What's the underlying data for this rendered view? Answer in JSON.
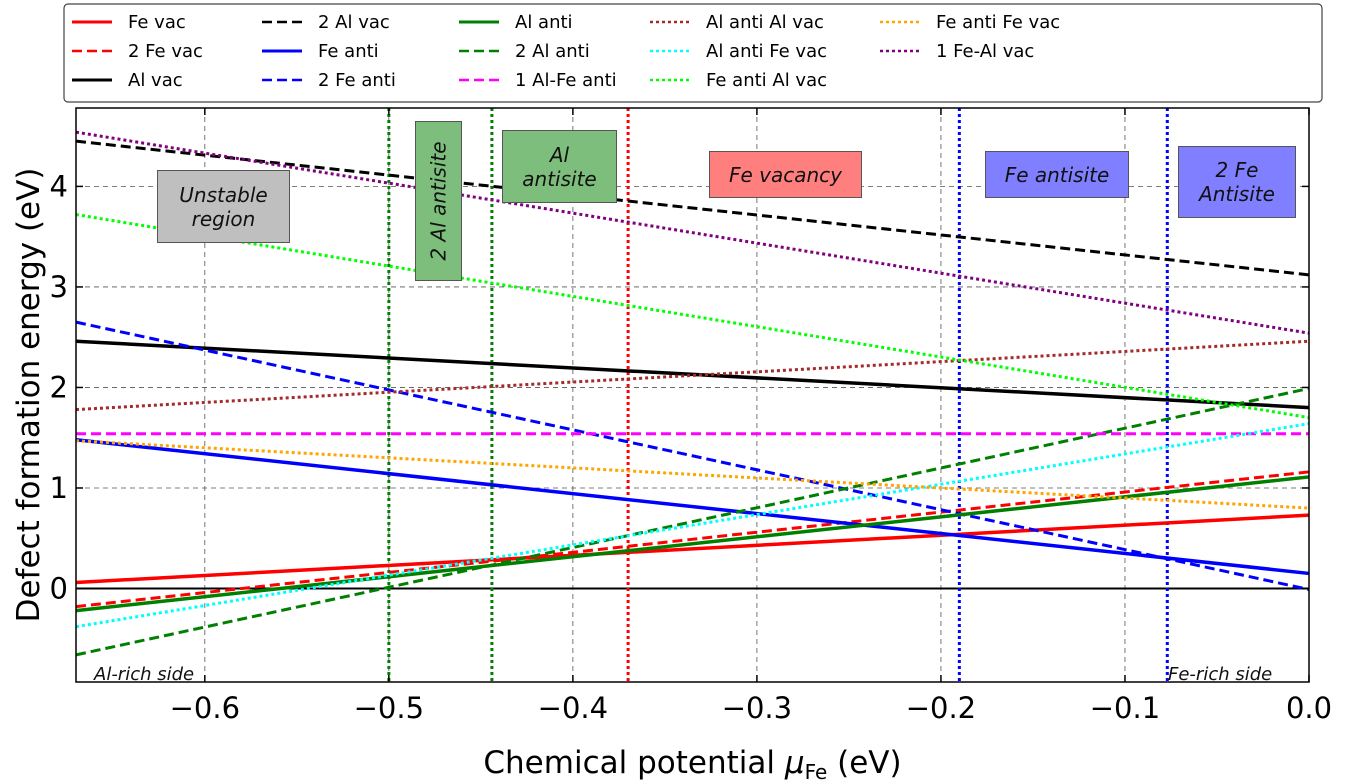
{
  "chart_data": {
    "type": "line",
    "xlabel": "Chemical potential ",
    "xlabel_mu": "μ",
    "xlabel_sub": "Fe",
    "xlabel_unit": " (eV)",
    "ylabel": "Defect formation energy (eV)",
    "xlim": [
      -0.67,
      0.0
    ],
    "ylim": [
      -0.93,
      4.78
    ],
    "xticks": [
      -0.6,
      -0.5,
      -0.4,
      -0.3,
      -0.2,
      -0.1,
      0.0
    ],
    "xtick_labels": [
      "−0.6",
      "−0.5",
      "−0.4",
      "−0.3",
      "−0.2",
      "−0.1",
      "0.0"
    ],
    "yticks": [
      0,
      1,
      2,
      3,
      4
    ],
    "ytick_labels": [
      "0",
      "1",
      "2",
      "3",
      "4"
    ],
    "grid": true,
    "legend_position": "top",
    "series": [
      {
        "name": "Fe vac",
        "color": "#ff0000",
        "dash": "solid",
        "x": [
          -0.67,
          0.0
        ],
        "y": [
          0.06,
          0.73
        ]
      },
      {
        "name": "2 Fe vac",
        "color": "#ff0000",
        "dash": "dashed",
        "x": [
          -0.67,
          0.0
        ],
        "y": [
          -0.18,
          1.16
        ]
      },
      {
        "name": "Al vac",
        "color": "#000000",
        "dash": "solid",
        "x": [
          -0.67,
          0.0
        ],
        "y": [
          2.46,
          1.8
        ]
      },
      {
        "name": "2 Al vac",
        "color": "#000000",
        "dash": "dashed",
        "x": [
          -0.67,
          0.0
        ],
        "y": [
          4.45,
          3.12
        ]
      },
      {
        "name": "Fe anti",
        "color": "#0000ff",
        "dash": "solid",
        "x": [
          -0.67,
          0.0
        ],
        "y": [
          1.48,
          0.15
        ]
      },
      {
        "name": "2 Fe anti",
        "color": "#0000ff",
        "dash": "dashed",
        "x": [
          -0.67,
          0.0
        ],
        "y": [
          2.65,
          -0.01
        ]
      },
      {
        "name": "Al anti",
        "color": "#008000",
        "dash": "solid",
        "x": [
          -0.67,
          0.0
        ],
        "y": [
          -0.22,
          1.11
        ]
      },
      {
        "name": "2 Al anti",
        "color": "#008000",
        "dash": "dashed",
        "x": [
          -0.67,
          0.0
        ],
        "y": [
          -0.66,
          1.99
        ]
      },
      {
        "name": "1 Al-Fe anti",
        "color": "#ff00ff",
        "dash": "dashed",
        "x": [
          -0.67,
          0.0
        ],
        "y": [
          1.54,
          1.54
        ]
      },
      {
        "name": "Al anti Al vac",
        "color": "#a52a2a",
        "dash": "dotted",
        "x": [
          -0.67,
          0.0
        ],
        "y": [
          1.78,
          2.46
        ]
      },
      {
        "name": "Al anti Fe vac",
        "color": "#00ffff",
        "dash": "dotted",
        "x": [
          -0.67,
          0.0
        ],
        "y": [
          -0.38,
          1.64
        ]
      },
      {
        "name": "Fe anti Al vac",
        "color": "#00ff00",
        "dash": "dotted",
        "x": [
          -0.67,
          0.0
        ],
        "y": [
          3.72,
          1.7
        ]
      },
      {
        "name": "Fe anti Fe vac",
        "color": "#ffa500",
        "dash": "dotted",
        "x": [
          -0.67,
          0.0
        ],
        "y": [
          1.47,
          0.8
        ]
      },
      {
        "name": "1 Fe-Al vac",
        "color": "#800080",
        "dash": "dotted",
        "x": [
          -0.67,
          0.0
        ],
        "y": [
          4.54,
          2.54
        ]
      }
    ],
    "vlines": [
      {
        "x": -0.5,
        "color": "#008000"
      },
      {
        "x": -0.444,
        "color": "#008000"
      },
      {
        "x": -0.37,
        "color": "#ff0000"
      },
      {
        "x": -0.19,
        "color": "#0000ff"
      },
      {
        "x": -0.077,
        "color": "#0000ff"
      }
    ],
    "annotations": [
      {
        "text": "Unstable\nregion",
        "color": "#bfbfbf"
      },
      {
        "text": "2 Al antisite",
        "color": "#7dbe7d"
      },
      {
        "text": "Al\nantisite",
        "color": "#7dbe7d"
      },
      {
        "text": "Fe vacancy",
        "color": "#ff7f7f"
      },
      {
        "text": "Fe antisite",
        "color": "#7f7fff"
      },
      {
        "text": "2 Fe\nAntisite",
        "color": "#7f7fff"
      }
    ],
    "side_labels": {
      "left": "Al-rich side",
      "right": "Fe-rich side"
    }
  }
}
